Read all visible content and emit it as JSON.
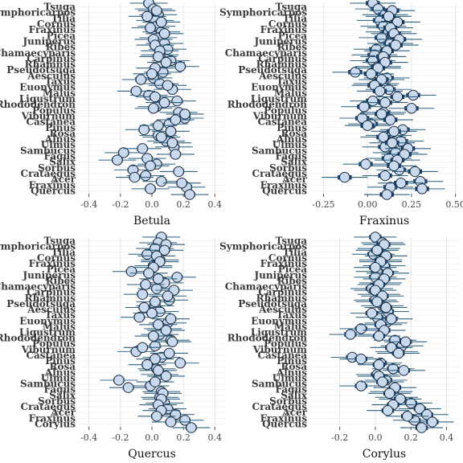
{
  "chart_data": [
    {
      "type": "forest",
      "xlabel": "Betula",
      "xlim": [
        -0.47,
        0.47
      ],
      "xticks": [
        -0.4,
        -0.2,
        0.0,
        0.2,
        0.4
      ],
      "tick_labels": [
        "-0.4",
        "-0.2",
        "0.0",
        "0.2",
        "0.4"
      ],
      "grid": true,
      "labels": [
        "Tsuga",
        "Symphoricarpos",
        "Tilia",
        "Cornus",
        "Fraxinus",
        "Picea",
        "Juniperus",
        "Ribes",
        "Chamaecyparis",
        "Carpinus",
        "Rhamnus",
        "Pseudotsuga",
        "Aesculus",
        "Taxus",
        "Euonymus",
        "Malus",
        "Ligustrum",
        "Rhododendron",
        "Populus",
        "Viburnum",
        "Castanea",
        "Pinus",
        "Rosa",
        "Alnus",
        "Ulmus",
        "Sambucus",
        "Fagus",
        "Salix",
        "Sorbus",
        "Crataegus",
        "Acer",
        "Fraxinus",
        "Quercus"
      ],
      "series": [
        {
          "values": [
            -0.02,
            0.01,
            0.04,
            0.02,
            0.03,
            0.06,
            0.04,
            0.08,
            0.1,
            0.05,
            0.12,
            0.18,
            0.07,
            0.01,
            0.05,
            0.13,
            -0.02,
            0.16,
            0.03,
            0.17,
            0.21,
            0.11,
            -0.05,
            0.04,
            0.09,
            0.14,
            -0.18,
            -0.03,
            0.03,
            -0.12,
            -0.04,
            0.06,
            0.22
          ],
          "ci_inner": 0.035,
          "ci_outer": 0.12
        },
        {
          "values": [
            0.03,
            -0.03,
            0.06,
            -0.01,
            0.08,
            0.01,
            0.02,
            0.05,
            0.04,
            0.09,
            0.02,
            0.0,
            -0.07,
            0.1,
            -0.1,
            0.02,
            0.08,
            0.01,
            0.21,
            0.15,
            0.04,
            0.12,
            0.06,
            0.13,
            -0.06,
            0.15,
            -0.22,
            -0.01,
            0.17,
            -0.11,
            0.19,
            -0.01,
            0.24
          ],
          "ci_inner": 0.035,
          "ci_outer": 0.12
        }
      ]
    },
    {
      "type": "forest",
      "xlabel": "Fraxinus",
      "xlim": [
        -0.33,
        0.52
      ],
      "xticks": [
        -0.25,
        0.0,
        0.25,
        0.5
      ],
      "tick_labels": [
        "-0.25",
        "0.00",
        "0.25",
        "0.50"
      ],
      "grid": true,
      "labels": [
        "Tsuga",
        "Symphoricarpos",
        "Tilia",
        "Cornus",
        "Fraxinus",
        "Picea",
        "Juniperus",
        "Ribes",
        "Chamaecyparis",
        "Carpinus",
        "Rhamnus",
        "Pseudotsuga",
        "Aesculus",
        "Taxus",
        "Euonymus",
        "Malus",
        "Ligustrum",
        "Rhododendron",
        "Populus",
        "Viburnum",
        "Castanea",
        "Pinus",
        "Rosa",
        "Alnus",
        "Ulmus",
        "Sambucus",
        "Fagus",
        "Salix",
        "Sorbus",
        "Crataegus",
        "Acer",
        "Fraxinus",
        "Quercus"
      ],
      "series": [
        {
          "values": [
            0.03,
            0.06,
            0.1,
            0.07,
            0.09,
            0.12,
            0.08,
            0.13,
            0.05,
            0.04,
            0.03,
            0.06,
            -0.07,
            0.11,
            0.05,
            0.12,
            0.26,
            0.03,
            -0.02,
            0.09,
            -0.03,
            0.02,
            0.2,
            0.12,
            0.19,
            0.1,
            0.16,
            0.12,
            -0.01,
            0.18,
            0.1,
            0.3,
            0.13
          ],
          "ci_inner": 0.04,
          "ci_outer": 0.13
        },
        {
          "values": [
            0.14,
            0.12,
            0.17,
            0.13,
            0.15,
            0.18,
            0.16,
            0.11,
            0.09,
            0.1,
            0.06,
            0.02,
            0.08,
            0.04,
            0.07,
            0.17,
            0.1,
            0.25,
            0.08,
            0.13,
            0.0,
            0.15,
            0.09,
            0.14,
            0.23,
            0.21,
            0.17,
            0.15,
            0.27,
            -0.13,
            0.19,
            0.31,
            0.11
          ],
          "ci_inner": 0.04,
          "ci_outer": 0.13
        }
      ]
    },
    {
      "type": "forest",
      "xlabel": "Quercus",
      "xlim": [
        -0.47,
        0.47
      ],
      "xticks": [
        -0.4,
        -0.2,
        0.0,
        0.2,
        0.4
      ],
      "tick_labels": [
        "-0.4",
        "-0.2",
        "0.0",
        "0.2",
        "0.4"
      ],
      "grid": true,
      "labels": [
        "Tsuga",
        "Symphoricarpos",
        "Tilia",
        "Cornus",
        "Fraxinus",
        "Picea",
        "Juniperus",
        "Ribes",
        "Chamaecyparis",
        "Carpinus",
        "Rhamnus",
        "Pseudotsuga",
        "Aesculus",
        "Taxus",
        "Euonymus",
        "Malus",
        "Ligustrum",
        "Rhododendron",
        "Populus",
        "Viburnum",
        "Castanea",
        "Pinus",
        "Rosa",
        "Alnus",
        "Ulmus",
        "Sambucus",
        "Fagus",
        "Salix",
        "Sorbus",
        "Crataegus",
        "Acer",
        "Fraxinus",
        "Corylus"
      ],
      "series": [
        {
          "values": [
            0.06,
            0.04,
            0.02,
            -0.03,
            0.05,
            0.01,
            -0.13,
            0.16,
            0.08,
            0.03,
            -0.06,
            0.11,
            0.02,
            0.05,
            -0.08,
            0.1,
            0.07,
            0.05,
            0.12,
            0.02,
            -0.1,
            0.06,
            0.18,
            0.03,
            0.05,
            -0.21,
            -0.01,
            0.06,
            0.05,
            0.08,
            0.1,
            0.15,
            0.21
          ],
          "ci_inner": 0.035,
          "ci_outer": 0.12
        },
        {
          "values": [
            0.09,
            0.08,
            0.03,
            0.05,
            0.01,
            -0.02,
            0.04,
            -0.04,
            0.14,
            0.1,
            0.02,
            -0.05,
            0.0,
            0.12,
            0.04,
            0.09,
            0.01,
            0.13,
            -0.06,
            0.11,
            0.02,
            -0.03,
            0.04,
            0.09,
            0.02,
            -0.15,
            0.07,
            0.06,
            0.04,
            0.06,
            0.03,
            0.12,
            0.25
          ],
          "ci_inner": 0.035,
          "ci_outer": 0.12
        }
      ]
    },
    {
      "type": "forest",
      "xlabel": "Corylus",
      "xlim": [
        -0.37,
        0.47
      ],
      "xticks": [
        -0.2,
        0.0,
        0.2,
        0.4
      ],
      "tick_labels": [
        "-0.2",
        "0.0",
        "0.2",
        "0.4"
      ],
      "grid": true,
      "labels": [
        "Tsuga",
        "Symphoricarpos",
        "Tilia",
        "Cornus",
        "Fraxinus",
        "Picea",
        "Juniperus",
        "Ribes",
        "Chamaecyparis",
        "Carpinus",
        "Rhamnus",
        "Pseudotsuga",
        "Aesculus",
        "Taxus",
        "Euonymus",
        "Malus",
        "Ligustrum",
        "Rhododendron",
        "Populus",
        "Viburnum",
        "Castanea",
        "Pinus",
        "Rosa",
        "Alnus",
        "Ulmus",
        "Sambucus",
        "Fagus",
        "Salix",
        "Sorbus",
        "Crataegus",
        "Acer",
        "Fraxinus",
        "Quercus"
      ],
      "series": [
        {
          "values": [
            0.0,
            0.04,
            0.02,
            -0.01,
            0.03,
            0.05,
            0.01,
            0.0,
            0.03,
            -0.02,
            0.02,
            0.0,
            0.04,
            0.07,
            0.01,
            0.06,
            -0.08,
            -0.14,
            0.11,
            0.15,
            0.12,
            -0.13,
            0.03,
            0.1,
            0.01,
            0.06,
            -0.08,
            0.09,
            0.12,
            0.2,
            0.25,
            0.29,
            0.22
          ],
          "ci_inner": 0.035,
          "ci_outer": 0.12
        },
        {
          "values": [
            0.05,
            0.01,
            0.06,
            0.03,
            0.0,
            0.07,
            0.05,
            0.02,
            0.0,
            0.04,
            0.01,
            0.06,
            -0.02,
            0.09,
            0.03,
            0.05,
            0.02,
            0.17,
            0.09,
            0.13,
            -0.08,
            0.02,
            0.16,
            0.02,
            0.04,
            0.11,
            0.08,
            0.14,
            0.1,
            0.07,
            0.18,
            0.32,
            0.26
          ],
          "ci_inner": 0.035,
          "ci_outer": 0.12
        }
      ]
    }
  ]
}
